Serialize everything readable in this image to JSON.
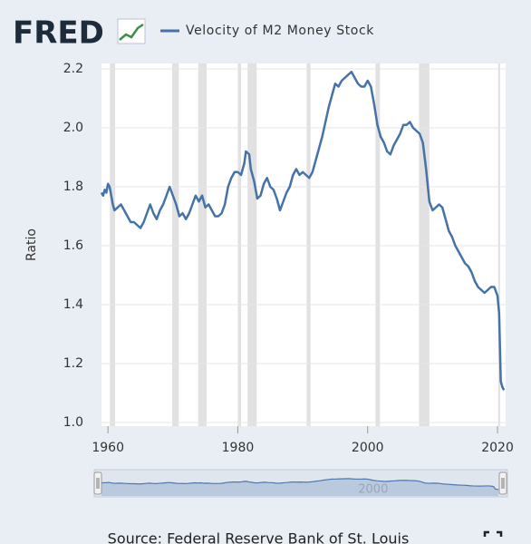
{
  "chart_data": {
    "type": "line",
    "logo": "FRED",
    "y_label": "Ratio",
    "source": "Source: Federal Reserve Bank of St. Louis",
    "x": [
      1959,
      1959.25,
      1959.5,
      1959.75,
      1960,
      1960.25,
      1960.5,
      1960.75,
      1961,
      1961.5,
      1962,
      1962.5,
      1963,
      1963.5,
      1964,
      1964.5,
      1965,
      1965.5,
      1966,
      1966.5,
      1967,
      1967.5,
      1968,
      1968.5,
      1969,
      1969.5,
      1970,
      1970.5,
      1971,
      1971.5,
      1972,
      1972.5,
      1973,
      1973.5,
      1974,
      1974.5,
      1975,
      1975.5,
      1976,
      1976.5,
      1977,
      1977.5,
      1978,
      1978.5,
      1979,
      1979.5,
      1980,
      1980.5,
      1981,
      1981.25,
      1981.75,
      1982,
      1982.5,
      1983,
      1983.5,
      1984,
      1984.5,
      1985,
      1985.5,
      1986,
      1986.5,
      1987,
      1987.5,
      1988,
      1988.5,
      1989,
      1989.5,
      1990,
      1990.5,
      1991,
      1991.5,
      1992,
      1992.5,
      1993,
      1993.5,
      1994,
      1994.5,
      1995,
      1995.5,
      1996,
      1996.5,
      1997,
      1997.5,
      1998,
      1998.5,
      1999,
      1999.5,
      2000,
      2000.5,
      2001,
      2001.5,
      2002,
      2002.5,
      2003,
      2003.5,
      2004,
      2004.5,
      2005,
      2005.5,
      2006,
      2006.5,
      2007,
      2007.5,
      2008,
      2008.5,
      2009,
      2009.5,
      2010,
      2010.5,
      2011,
      2011.5,
      2012,
      2012.5,
      2013,
      2013.5,
      2014,
      2014.5,
      2015,
      2015.5,
      2016,
      2016.5,
      2017,
      2017.5,
      2018,
      2018.5,
      2019,
      2019.5,
      2020,
      2020.25,
      2020.5,
      2020.75,
      2021
    ],
    "series": [
      {
        "name": "Velocity of M2 Money Stock",
        "color": "#4572a7",
        "values": [
          1.78,
          1.77,
          1.79,
          1.78,
          1.81,
          1.8,
          1.77,
          1.74,
          1.72,
          1.73,
          1.74,
          1.72,
          1.7,
          1.68,
          1.68,
          1.67,
          1.66,
          1.68,
          1.71,
          1.74,
          1.71,
          1.69,
          1.72,
          1.74,
          1.77,
          1.8,
          1.77,
          1.74,
          1.7,
          1.71,
          1.69,
          1.71,
          1.74,
          1.77,
          1.75,
          1.77,
          1.73,
          1.74,
          1.72,
          1.7,
          1.7,
          1.71,
          1.74,
          1.8,
          1.83,
          1.85,
          1.85,
          1.84,
          1.88,
          1.92,
          1.91,
          1.86,
          1.82,
          1.76,
          1.77,
          1.81,
          1.83,
          1.8,
          1.79,
          1.76,
          1.72,
          1.75,
          1.78,
          1.8,
          1.84,
          1.86,
          1.84,
          1.85,
          1.84,
          1.83,
          1.85,
          1.89,
          1.93,
          1.97,
          2.02,
          2.07,
          2.11,
          2.15,
          2.14,
          2.16,
          2.17,
          2.18,
          2.19,
          2.17,
          2.15,
          2.14,
          2.14,
          2.16,
          2.14,
          2.08,
          2.01,
          1.97,
          1.95,
          1.92,
          1.91,
          1.94,
          1.96,
          1.98,
          2.01,
          2.01,
          2.02,
          2.0,
          1.99,
          1.98,
          1.95,
          1.86,
          1.75,
          1.72,
          1.73,
          1.74,
          1.73,
          1.69,
          1.65,
          1.63,
          1.6,
          1.58,
          1.56,
          1.54,
          1.53,
          1.51,
          1.48,
          1.46,
          1.45,
          1.44,
          1.45,
          1.46,
          1.46,
          1.43,
          1.37,
          1.14,
          1.12,
          1.11
        ]
      }
    ],
    "recessions": [
      [
        1960.3,
        1961.1
      ],
      [
        1969.9,
        1970.9
      ],
      [
        1973.9,
        1975.2
      ],
      [
        1980.0,
        1980.5
      ],
      [
        1981.5,
        1982.9
      ],
      [
        1990.6,
        1991.2
      ],
      [
        2001.2,
        2001.9
      ],
      [
        2007.9,
        2009.5
      ],
      [
        2020.1,
        2020.4
      ]
    ],
    "recession_color": "#e1e1e1",
    "xlim": [
      1959,
      2021.25
    ],
    "xticks": [
      1960,
      1980,
      2000,
      2020
    ],
    "ylim": [
      1.0,
      2.2
    ],
    "yticks": [
      {
        "value": 1.0,
        "label": "1.0"
      },
      1.2,
      1.4,
      1.6,
      1.8,
      {
        "value": 2.0,
        "label": "2.0"
      },
      2.2
    ],
    "grid": true
  }
}
